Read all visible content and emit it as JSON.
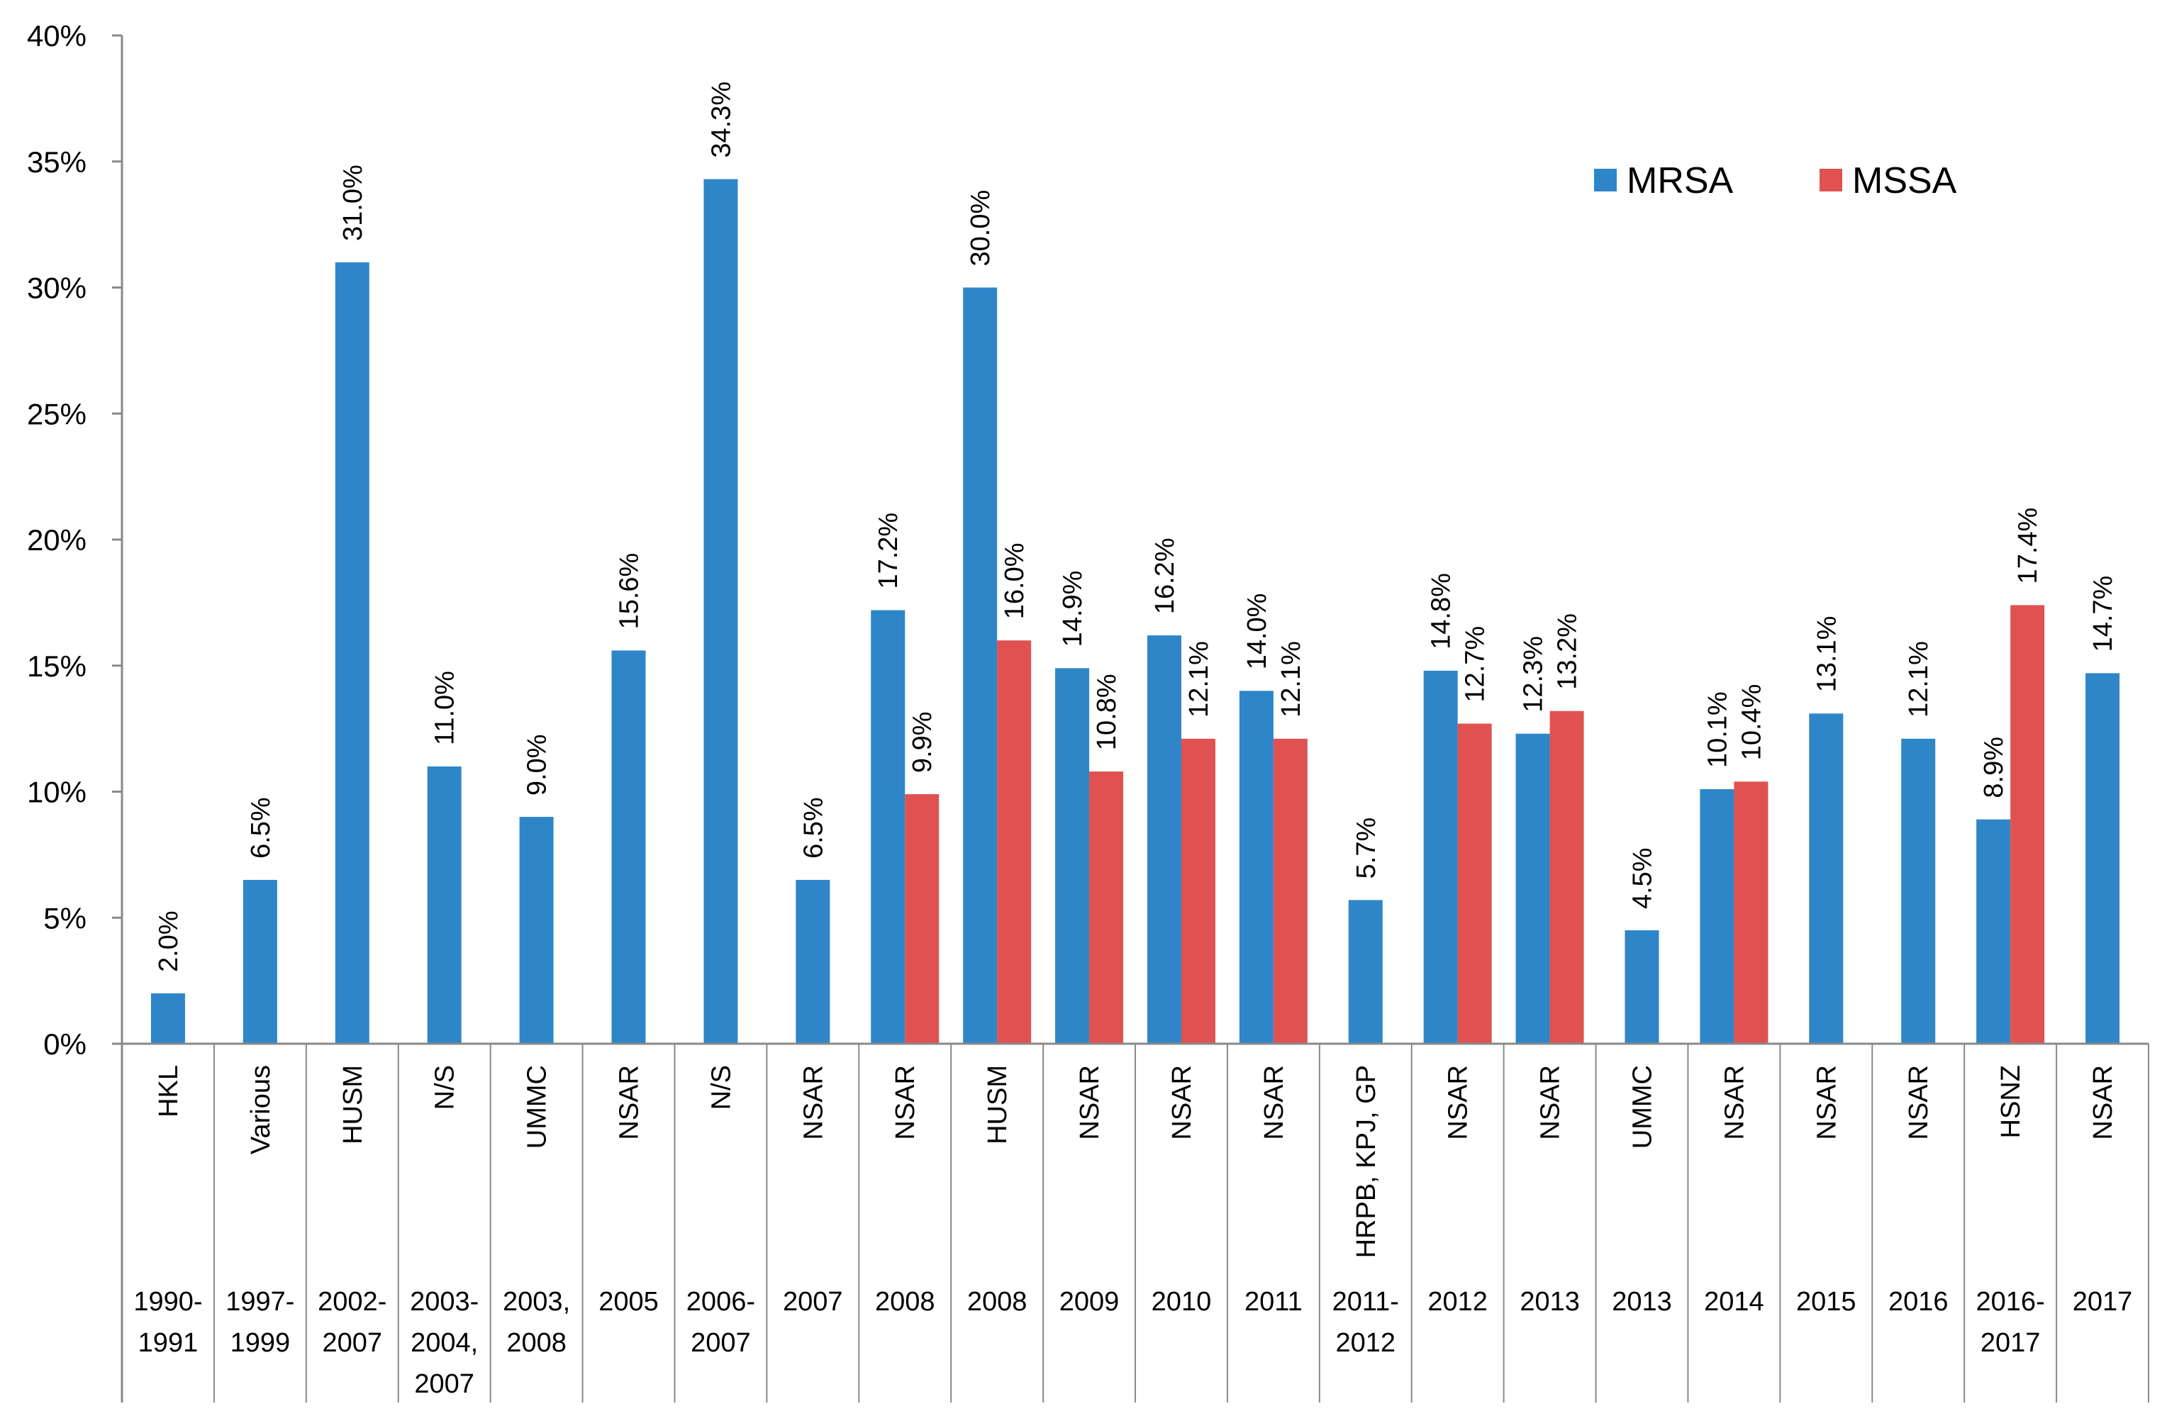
{
  "chart_data": {
    "type": "bar",
    "title": "",
    "xlabel": "",
    "ylabel": "",
    "ylim": [
      0,
      40
    ],
    "y_ticks": [
      "0%",
      "5%",
      "10%",
      "15%",
      "20%",
      "25%",
      "30%",
      "35%",
      "40%"
    ],
    "legend_position": "top-right",
    "grid": false,
    "categories": [
      {
        "site": "HKL",
        "period": [
          "1990-",
          "1991"
        ]
      },
      {
        "site": "Various",
        "period": [
          "1997-",
          "1999"
        ]
      },
      {
        "site": "HUSM",
        "period": [
          "2002-",
          "2007"
        ]
      },
      {
        "site": "N/S",
        "period": [
          "2003-",
          "2004,",
          "2007"
        ]
      },
      {
        "site": "UMMC",
        "period": [
          "2003,",
          "2008"
        ]
      },
      {
        "site": "NSAR",
        "period": [
          "2005"
        ]
      },
      {
        "site": "N/S",
        "period": [
          "2006-",
          "2007"
        ]
      },
      {
        "site": "NSAR",
        "period": [
          "2007"
        ]
      },
      {
        "site": "NSAR",
        "period": [
          "2008"
        ]
      },
      {
        "site": "HUSM",
        "period": [
          "2008"
        ]
      },
      {
        "site": "NSAR",
        "period": [
          "2009"
        ]
      },
      {
        "site": "NSAR",
        "period": [
          "2010"
        ]
      },
      {
        "site": "NSAR",
        "period": [
          "2011"
        ]
      },
      {
        "site": "HRPB, KPJ, GP",
        "period": [
          "2011-",
          "2012"
        ]
      },
      {
        "site": "NSAR",
        "period": [
          "2012"
        ]
      },
      {
        "site": "NSAR",
        "period": [
          "2013"
        ]
      },
      {
        "site": "UMMC",
        "period": [
          "2013"
        ]
      },
      {
        "site": "NSAR",
        "period": [
          "2014"
        ]
      },
      {
        "site": "NSAR",
        "period": [
          "2015"
        ]
      },
      {
        "site": "NSAR",
        "period": [
          "2016"
        ]
      },
      {
        "site": "HSNZ",
        "period": [
          "2016-",
          "2017"
        ]
      },
      {
        "site": "NSAR",
        "period": [
          "2017"
        ]
      }
    ],
    "series": [
      {
        "name": "MRSA",
        "color": "#2e86c9",
        "values": [
          2.0,
          6.5,
          31.0,
          11.0,
          9.0,
          15.6,
          34.3,
          6.5,
          17.2,
          30.0,
          14.9,
          16.2,
          14.0,
          5.7,
          14.8,
          12.3,
          4.5,
          10.1,
          13.1,
          12.1,
          8.9,
          14.7
        ],
        "labels": [
          "2.0%",
          "6.5%",
          "31.0%",
          "11.0%",
          "9.0%",
          "15.6%",
          "34.3%",
          "6.5%",
          "17.2%",
          "30.0%",
          "14.9%",
          "16.2%",
          "14.0%",
          "5.7%",
          "14.8%",
          "12.3%",
          "4.5%",
          "10.1%",
          "13.1%",
          "12.1%",
          "8.9%",
          "14.7%"
        ]
      },
      {
        "name": "MSSA",
        "color": "#e05252",
        "values": [
          null,
          null,
          null,
          null,
          null,
          null,
          null,
          null,
          9.9,
          16.0,
          10.8,
          12.1,
          12.1,
          null,
          12.7,
          13.2,
          null,
          10.4,
          null,
          null,
          17.4,
          null
        ],
        "labels": [
          null,
          null,
          null,
          null,
          null,
          null,
          null,
          null,
          "9.9%",
          "16.0%",
          "10.8%",
          "12.1%",
          "12.1%",
          null,
          "12.7%",
          "13.2%",
          null,
          "10.4%",
          null,
          null,
          "17.4%",
          null
        ]
      }
    ]
  }
}
